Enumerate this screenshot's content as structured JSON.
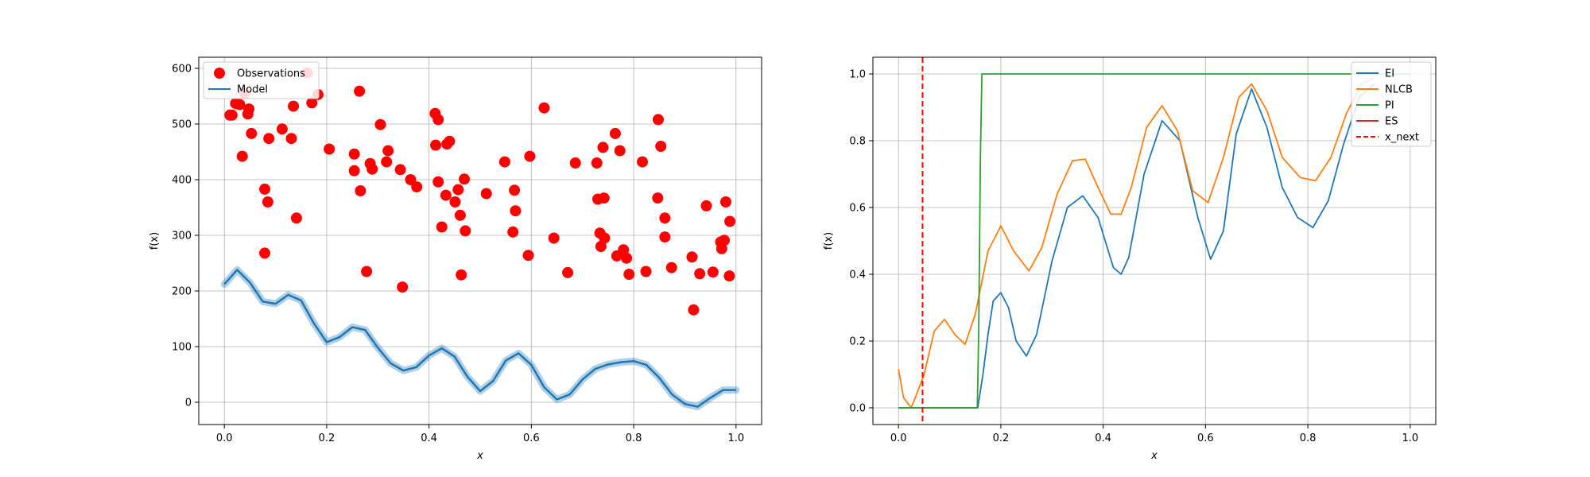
{
  "chart_data": [
    {
      "type": "scatter",
      "xlabel": "x",
      "ylabel": "f(x)",
      "xlim": [
        -0.05,
        1.05
      ],
      "ylim": [
        -40,
        620
      ],
      "xticks": [
        0.0,
        0.2,
        0.4,
        0.6,
        0.8,
        1.0
      ],
      "yticks": [
        0,
        100,
        200,
        300,
        400,
        500,
        600
      ],
      "grid": true,
      "legend_position": "upper-left",
      "legend": [
        {
          "label": "Observations",
          "color": "#ff0000",
          "marker": "circle"
        },
        {
          "label": "Model",
          "color": "#1f77b4",
          "marker": "line"
        }
      ],
      "observations": [
        [
          0.011,
          516
        ],
        [
          0.015,
          516
        ],
        [
          0.022,
          537
        ],
        [
          0.03,
          535
        ],
        [
          0.035,
          442
        ],
        [
          0.04,
          555
        ],
        [
          0.046,
          518
        ],
        [
          0.048,
          527
        ],
        [
          0.053,
          483
        ],
        [
          0.079,
          383
        ],
        [
          0.079,
          268
        ],
        [
          0.085,
          360
        ],
        [
          0.087,
          474
        ],
        [
          0.113,
          491
        ],
        [
          0.131,
          474
        ],
        [
          0.135,
          532
        ],
        [
          0.141,
          331
        ],
        [
          0.162,
          592
        ],
        [
          0.171,
          538
        ],
        [
          0.183,
          553
        ],
        [
          0.205,
          455
        ],
        [
          0.254,
          446
        ],
        [
          0.254,
          416
        ],
        [
          0.264,
          559
        ],
        [
          0.266,
          380
        ],
        [
          0.278,
          235
        ],
        [
          0.285,
          429
        ],
        [
          0.289,
          419
        ],
        [
          0.305,
          499
        ],
        [
          0.317,
          432
        ],
        [
          0.32,
          452
        ],
        [
          0.344,
          418
        ],
        [
          0.348,
          207
        ],
        [
          0.364,
          400
        ],
        [
          0.376,
          387
        ],
        [
          0.412,
          519
        ],
        [
          0.413,
          462
        ],
        [
          0.418,
          508
        ],
        [
          0.418,
          396
        ],
        [
          0.425,
          315
        ],
        [
          0.433,
          372
        ],
        [
          0.435,
          464
        ],
        [
          0.44,
          469
        ],
        [
          0.451,
          360
        ],
        [
          0.457,
          382
        ],
        [
          0.461,
          336
        ],
        [
          0.463,
          229
        ],
        [
          0.469,
          401
        ],
        [
          0.471,
          308
        ],
        [
          0.512,
          375
        ],
        [
          0.548,
          432
        ],
        [
          0.564,
          306
        ],
        [
          0.567,
          381
        ],
        [
          0.569,
          344
        ],
        [
          0.594,
          264
        ],
        [
          0.597,
          442
        ],
        [
          0.625,
          529
        ],
        [
          0.644,
          295
        ],
        [
          0.671,
          233
        ],
        [
          0.686,
          430
        ],
        [
          0.728,
          430
        ],
        [
          0.73,
          365
        ],
        [
          0.734,
          304
        ],
        [
          0.736,
          280
        ],
        [
          0.74,
          458
        ],
        [
          0.742,
          367
        ],
        [
          0.743,
          295
        ],
        [
          0.764,
          483
        ],
        [
          0.767,
          263
        ],
        [
          0.773,
          452
        ],
        [
          0.78,
          274
        ],
        [
          0.786,
          259
        ],
        [
          0.791,
          230
        ],
        [
          0.817,
          432
        ],
        [
          0.824,
          235
        ],
        [
          0.847,
          367
        ],
        [
          0.848,
          508
        ],
        [
          0.853,
          460
        ],
        [
          0.861,
          297
        ],
        [
          0.861,
          331
        ],
        [
          0.874,
          242
        ],
        [
          0.914,
          261
        ],
        [
          0.917,
          166
        ],
        [
          0.929,
          231
        ],
        [
          0.942,
          353
        ],
        [
          0.955,
          234
        ],
        [
          0.97,
          288
        ],
        [
          0.972,
          276
        ],
        [
          0.977,
          291
        ],
        [
          0.98,
          360
        ],
        [
          0.987,
          227
        ],
        [
          0.988,
          325
        ]
      ],
      "model_series": {
        "x": [
          0.0,
          0.025,
          0.05,
          0.075,
          0.1,
          0.125,
          0.15,
          0.175,
          0.2,
          0.225,
          0.25,
          0.275,
          0.3,
          0.325,
          0.35,
          0.375,
          0.4,
          0.425,
          0.45,
          0.475,
          0.5,
          0.525,
          0.55,
          0.575,
          0.6,
          0.625,
          0.65,
          0.675,
          0.7,
          0.725,
          0.75,
          0.775,
          0.8,
          0.825,
          0.85,
          0.875,
          0.9,
          0.925,
          0.95,
          0.975,
          1.0
        ],
        "y": [
          212,
          238,
          215,
          181,
          177,
          193,
          183,
          142,
          108,
          117,
          135,
          130,
          98,
          70,
          57,
          63,
          84,
          97,
          82,
          46,
          20,
          38,
          75,
          88,
          67,
          27,
          5,
          14,
          41,
          60,
          68,
          72,
          74,
          67,
          44,
          14,
          -3,
          -8,
          8,
          22,
          22
        ]
      }
    },
    {
      "type": "line",
      "xlabel": "x",
      "ylabel": "f(x)",
      "xlim": [
        -0.05,
        1.05
      ],
      "ylim": [
        -0.05,
        1.05
      ],
      "xticks": [
        0.0,
        0.2,
        0.4,
        0.6,
        0.8,
        1.0
      ],
      "yticks": [
        0.0,
        0.2,
        0.4,
        0.6,
        0.8,
        1.0
      ],
      "grid": true,
      "legend_position": "upper-right",
      "x_next": 0.047,
      "legend": [
        {
          "label": "EI",
          "color": "#1f77b4",
          "dashed": false
        },
        {
          "label": "NLCB",
          "color": "#ff7f0e",
          "dashed": false
        },
        {
          "label": "PI",
          "color": "#2ca02c",
          "dashed": false
        },
        {
          "label": "ES",
          "color": "#d62728",
          "dashed": false
        },
        {
          "label": "x_next",
          "color": "#ff0000",
          "dashed": true
        }
      ],
      "series": [
        {
          "name": "EI",
          "color": "#1f77b4",
          "x": [
            0.0,
            0.155,
            0.165,
            0.175,
            0.185,
            0.2,
            0.215,
            0.23,
            0.25,
            0.27,
            0.3,
            0.33,
            0.36,
            0.39,
            0.42,
            0.435,
            0.45,
            0.48,
            0.515,
            0.55,
            0.585,
            0.61,
            0.635,
            0.66,
            0.69,
            0.72,
            0.75,
            0.78,
            0.81,
            0.84,
            0.87,
            0.9,
            0.93
          ],
          "y": [
            0.0,
            0.0,
            0.1,
            0.22,
            0.32,
            0.345,
            0.3,
            0.2,
            0.155,
            0.22,
            0.44,
            0.6,
            0.635,
            0.57,
            0.42,
            0.4,
            0.45,
            0.7,
            0.86,
            0.8,
            0.57,
            0.445,
            0.53,
            0.82,
            0.955,
            0.84,
            0.66,
            0.57,
            0.54,
            0.62,
            0.79,
            0.93,
            0.97
          ]
        },
        {
          "name": "NLCB",
          "color": "#ff7f0e",
          "x": [
            0.0,
            0.01,
            0.025,
            0.05,
            0.07,
            0.09,
            0.11,
            0.13,
            0.15,
            0.175,
            0.2,
            0.225,
            0.255,
            0.28,
            0.31,
            0.34,
            0.365,
            0.39,
            0.415,
            0.435,
            0.455,
            0.485,
            0.515,
            0.545,
            0.575,
            0.605,
            0.635,
            0.665,
            0.69,
            0.72,
            0.75,
            0.785,
            0.815,
            0.845,
            0.875,
            0.905,
            0.93
          ],
          "y": [
            0.115,
            0.03,
            0.0,
            0.1,
            0.23,
            0.265,
            0.22,
            0.19,
            0.28,
            0.47,
            0.545,
            0.47,
            0.41,
            0.48,
            0.64,
            0.74,
            0.745,
            0.66,
            0.58,
            0.58,
            0.66,
            0.84,
            0.905,
            0.83,
            0.65,
            0.615,
            0.75,
            0.93,
            0.97,
            0.89,
            0.75,
            0.69,
            0.68,
            0.75,
            0.88,
            0.97,
            0.99
          ]
        },
        {
          "name": "PI",
          "color": "#2ca02c",
          "x": [
            0.0,
            0.154,
            0.157,
            0.16,
            0.163,
            1.0
          ],
          "y": [
            0.0,
            0.0,
            0.25,
            0.75,
            1.0,
            1.0
          ]
        },
        {
          "name": "ES",
          "color": "#d62728",
          "x": [],
          "y": []
        }
      ]
    }
  ]
}
